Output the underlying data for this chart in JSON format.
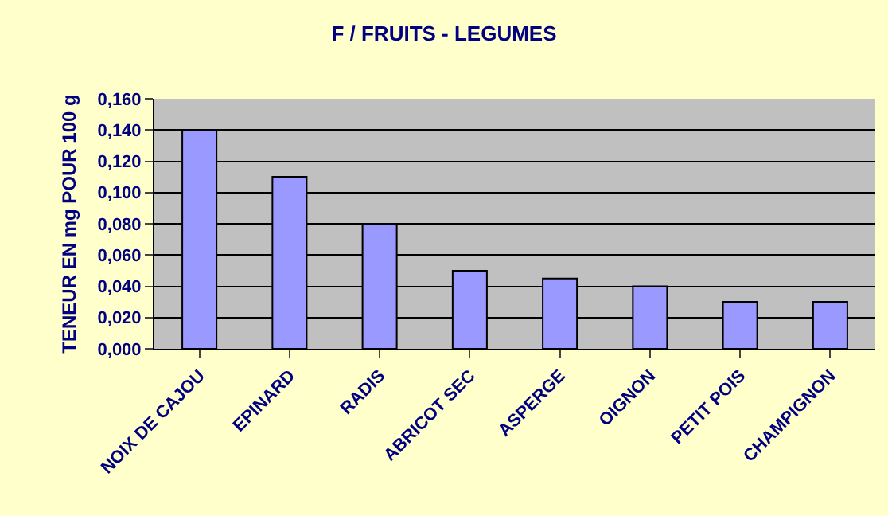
{
  "chart_data": {
    "type": "bar",
    "title": "F / FRUITS - LEGUMES",
    "ylabel": "TENEUR EN mg POUR 100 g",
    "categories": [
      "NOIX DE CAJOU",
      "EPINARD",
      "RADIS",
      "ABRICOT SEC",
      "ASPERGE",
      "OIGNON",
      "PETIT POIS",
      "CHAMPIGNON"
    ],
    "values": [
      0.14,
      0.11,
      0.08,
      0.05,
      0.045,
      0.04,
      0.03,
      0.03
    ],
    "color": "#9999ff",
    "ylim": [
      0,
      0.16
    ],
    "yticks": [
      {
        "value": 0,
        "label": "0,000"
      },
      {
        "value": 0.02,
        "label": "0,020"
      },
      {
        "value": 0.04,
        "label": "0,040"
      },
      {
        "value": 0.06,
        "label": "0,060"
      },
      {
        "value": 0.08,
        "label": "0,080"
      },
      {
        "value": 0.1,
        "label": "0,100"
      },
      {
        "value": 0.12,
        "label": "0,120"
      },
      {
        "value": 0.14,
        "label": "0,140"
      },
      {
        "value": 0.16,
        "label": "0,160"
      }
    ],
    "grid": "y",
    "legend": false
  }
}
